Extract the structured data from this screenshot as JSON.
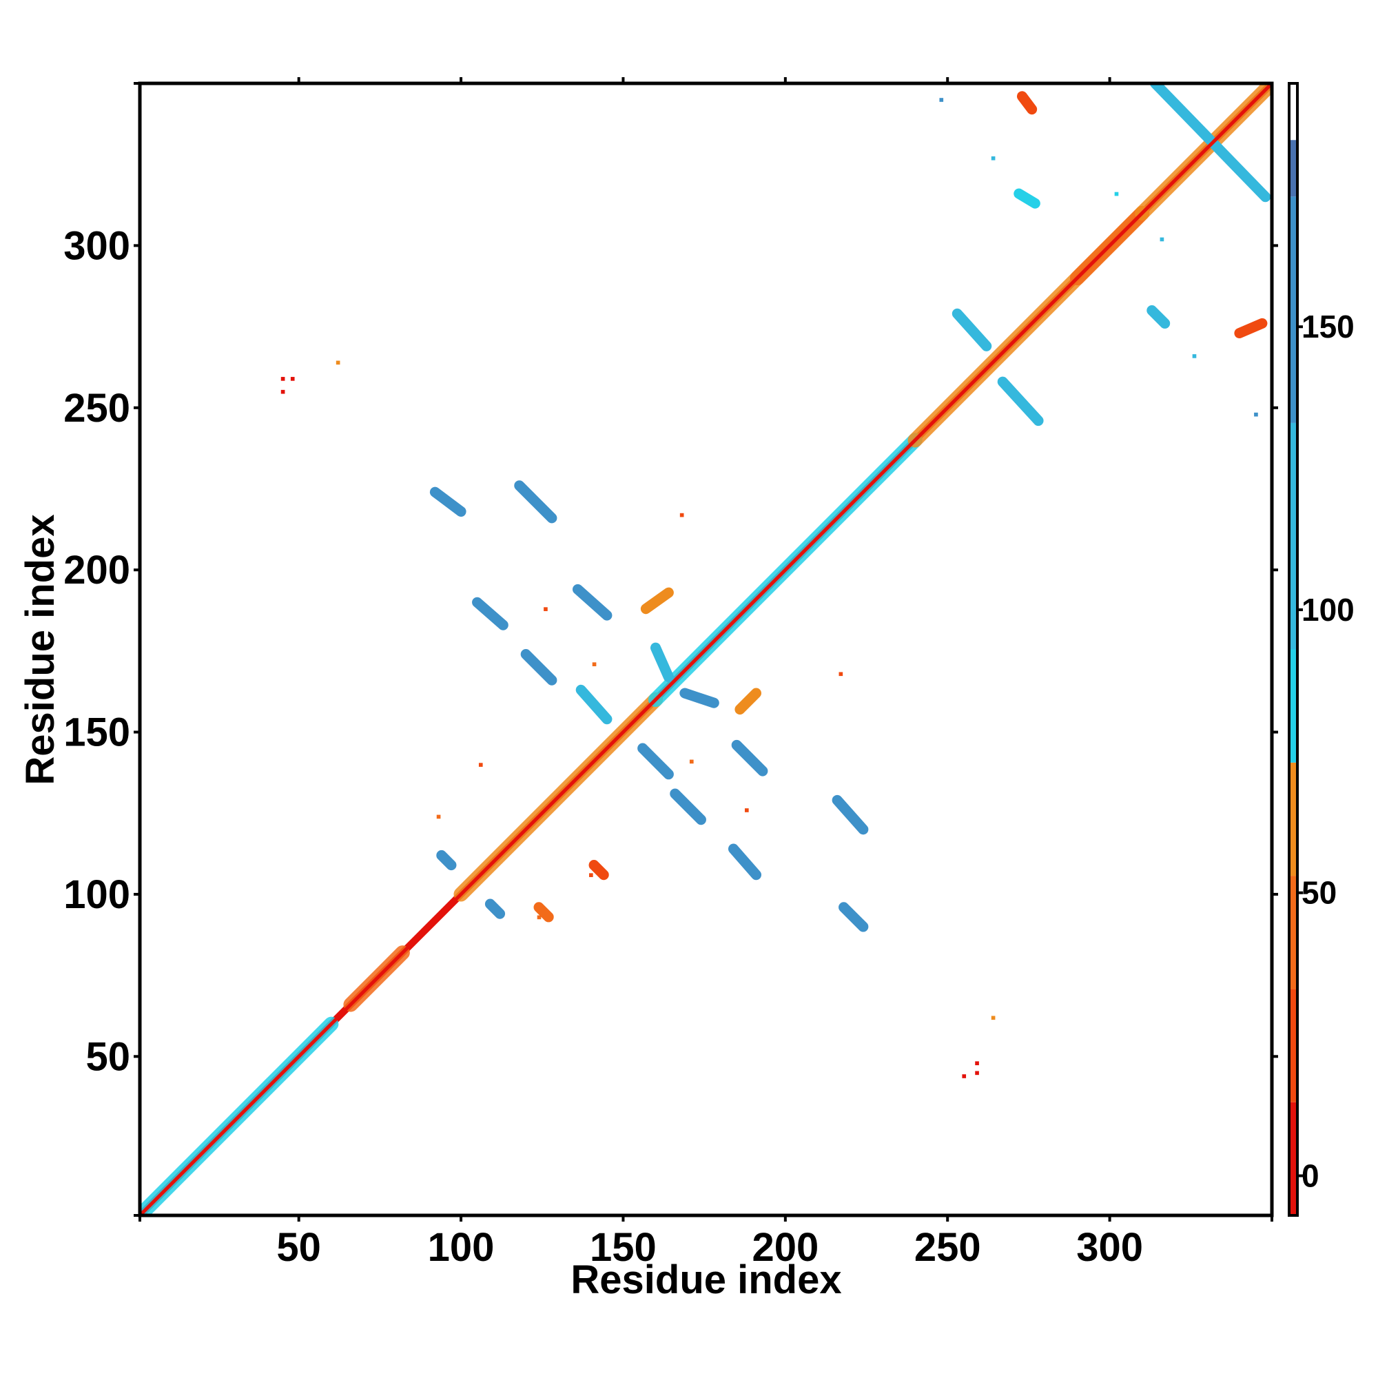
{
  "chart_data": {
    "type": "heatmap",
    "title": "",
    "xlabel": "Residue index",
    "ylabel": "Residue index",
    "xlim": [
      1,
      350
    ],
    "ylim": [
      1,
      350
    ],
    "x_ticks": [
      50,
      100,
      150,
      200,
      250,
      300
    ],
    "y_ticks": [
      50,
      100,
      150,
      200,
      250,
      300
    ],
    "colorbar": {
      "ticks": [
        0,
        50,
        100,
        150
      ],
      "range": [
        -7,
        193
      ],
      "segments": [
        {
          "from": -7,
          "to": 13,
          "color": "#e3120b"
        },
        {
          "from": 13,
          "to": 33,
          "color": "#f04a10"
        },
        {
          "from": 33,
          "to": 53,
          "color": "#f26b1a"
        },
        {
          "from": 53,
          "to": 73,
          "color": "#ee8c1e"
        },
        {
          "from": 73,
          "to": 93,
          "color": "#25d0e8"
        },
        {
          "from": 93,
          "to": 133,
          "color": "#35b8dd"
        },
        {
          "from": 133,
          "to": 173,
          "color": "#3e91c9"
        },
        {
          "from": 173,
          "to": 183,
          "color": "#4a72b0"
        },
        {
          "from": 183,
          "to": 193,
          "color": "#ffffff"
        }
      ]
    },
    "features": [
      {
        "kind": "diagonal",
        "from": 1,
        "to": 350,
        "color": "#e3120b"
      },
      {
        "kind": "band",
        "x1": 3,
        "y1": 3,
        "x2": 60,
        "y2": 60,
        "color": "#25d0e8"
      },
      {
        "kind": "band",
        "x1": 66,
        "y1": 66,
        "x2": 82,
        "y2": 82,
        "color": "#f26b1a"
      },
      {
        "kind": "band",
        "x1": 100,
        "y1": 100,
        "x2": 160,
        "y2": 160,
        "color": "#ee8c1e"
      },
      {
        "kind": "band",
        "x1": 160,
        "y1": 160,
        "x2": 240,
        "y2": 240,
        "color": "#25d0e8"
      },
      {
        "kind": "band",
        "x1": 240,
        "y1": 240,
        "x2": 310,
        "y2": 310,
        "color": "#ee8c1e"
      },
      {
        "kind": "band",
        "x1": 290,
        "y1": 290,
        "x2": 310,
        "y2": 310,
        "color": "#f26b1a"
      },
      {
        "kind": "band",
        "x1": 310,
        "y1": 310,
        "x2": 348,
        "y2": 348,
        "color": "#ee8c1e"
      },
      {
        "kind": "segment",
        "x1": 92,
        "y1": 224,
        "x2": 100,
        "y2": 218,
        "color": "#3e91c9"
      },
      {
        "kind": "segment",
        "x1": 118,
        "y1": 226,
        "x2": 128,
        "y2": 216,
        "color": "#3e91c9"
      },
      {
        "kind": "segment",
        "x1": 105,
        "y1": 190,
        "x2": 113,
        "y2": 183,
        "color": "#3e91c9"
      },
      {
        "kind": "segment",
        "x1": 136,
        "y1": 194,
        "x2": 145,
        "y2": 186,
        "color": "#3e91c9"
      },
      {
        "kind": "segment",
        "x1": 120,
        "y1": 174,
        "x2": 128,
        "y2": 166,
        "color": "#3e91c9"
      },
      {
        "kind": "segment",
        "x1": 137,
        "y1": 163,
        "x2": 145,
        "y2": 154,
        "color": "#35b8dd"
      },
      {
        "kind": "segment",
        "x1": 156,
        "y1": 145,
        "x2": 164,
        "y2": 137,
        "color": "#3e91c9"
      },
      {
        "kind": "segment",
        "x1": 185,
        "y1": 146,
        "x2": 193,
        "y2": 138,
        "color": "#3e91c9"
      },
      {
        "kind": "segment",
        "x1": 166,
        "y1": 131,
        "x2": 174,
        "y2": 123,
        "color": "#3e91c9"
      },
      {
        "kind": "segment",
        "x1": 216,
        "y1": 129,
        "x2": 224,
        "y2": 120,
        "color": "#3e91c9"
      },
      {
        "kind": "segment",
        "x1": 184,
        "y1": 114,
        "x2": 191,
        "y2": 106,
        "color": "#3e91c9"
      },
      {
        "kind": "segment",
        "x1": 218,
        "y1": 96,
        "x2": 224,
        "y2": 90,
        "color": "#3e91c9"
      },
      {
        "kind": "segment",
        "x1": 94,
        "y1": 112,
        "x2": 97,
        "y2": 109,
        "color": "#3e91c9"
      },
      {
        "kind": "segment",
        "x1": 109,
        "y1": 97,
        "x2": 112,
        "y2": 94,
        "color": "#3e91c9"
      },
      {
        "kind": "segment",
        "x1": 160,
        "y1": 176,
        "x2": 164,
        "y2": 167,
        "color": "#35b8dd"
      },
      {
        "kind": "segment",
        "x1": 169,
        "y1": 162,
        "x2": 178,
        "y2": 159,
        "color": "#3e91c9"
      },
      {
        "kind": "segment",
        "x1": 253,
        "y1": 279,
        "x2": 262,
        "y2": 269,
        "color": "#35b8dd"
      },
      {
        "kind": "segment",
        "x1": 267,
        "y1": 258,
        "x2": 278,
        "y2": 246,
        "color": "#35b8dd"
      },
      {
        "kind": "segment",
        "x1": 314,
        "y1": 350,
        "x2": 348,
        "y2": 315,
        "color": "#35b8dd"
      },
      {
        "kind": "segment",
        "x1": 273,
        "y1": 346,
        "x2": 276,
        "y2": 342,
        "color": "#f04a10"
      },
      {
        "kind": "segment",
        "x1": 272,
        "y1": 316,
        "x2": 277,
        "y2": 313,
        "color": "#25d0e8"
      },
      {
        "kind": "segment",
        "x1": 313,
        "y1": 280,
        "x2": 317,
        "y2": 276,
        "color": "#35b8dd"
      },
      {
        "kind": "segment",
        "x1": 340,
        "y1": 273,
        "x2": 347,
        "y2": 276,
        "color": "#f04a10"
      },
      {
        "kind": "segment",
        "x1": 124,
        "y1": 96,
        "x2": 127,
        "y2": 93,
        "color": "#f26b1a"
      },
      {
        "kind": "segment",
        "x1": 141,
        "y1": 109,
        "x2": 144,
        "y2": 106,
        "color": "#f04a10"
      },
      {
        "kind": "segment",
        "x1": 157,
        "y1": 188,
        "x2": 164,
        "y2": 193,
        "color": "#ee8c1e"
      },
      {
        "kind": "segment",
        "x1": 186,
        "y1": 157,
        "x2": 191,
        "y2": 162,
        "color": "#ee8c1e"
      },
      {
        "kind": "point",
        "x": 264,
        "y": 327,
        "color": "#35b8dd"
      },
      {
        "kind": "point",
        "x": 326,
        "y": 266,
        "color": "#35b8dd"
      },
      {
        "kind": "point",
        "x": 248,
        "y": 345,
        "color": "#3e91c9"
      },
      {
        "kind": "point",
        "x": 345,
        "y": 248,
        "color": "#3e91c9"
      },
      {
        "kind": "point",
        "x": 45,
        "y": 259,
        "color": "#e3120b"
      },
      {
        "kind": "point",
        "x": 48,
        "y": 259,
        "color": "#e3120b"
      },
      {
        "kind": "point",
        "x": 45,
        "y": 255,
        "color": "#e3120b"
      },
      {
        "kind": "point",
        "x": 62,
        "y": 264,
        "color": "#ee8c1e"
      },
      {
        "kind": "point",
        "x": 255,
        "y": 44,
        "color": "#e3120b"
      },
      {
        "kind": "point",
        "x": 259,
        "y": 48,
        "color": "#e3120b"
      },
      {
        "kind": "point",
        "x": 259,
        "y": 45,
        "color": "#e3120b"
      },
      {
        "kind": "point",
        "x": 264,
        "y": 62,
        "color": "#ee8c1e"
      },
      {
        "kind": "point",
        "x": 106,
        "y": 140,
        "color": "#f04a10"
      },
      {
        "kind": "point",
        "x": 140,
        "y": 106,
        "color": "#f04a10"
      },
      {
        "kind": "point",
        "x": 93,
        "y": 124,
        "color": "#f26b1a"
      },
      {
        "kind": "point",
        "x": 124,
        "y": 93,
        "color": "#f26b1a"
      },
      {
        "kind": "point",
        "x": 126,
        "y": 188,
        "color": "#f04a10"
      },
      {
        "kind": "point",
        "x": 188,
        "y": 126,
        "color": "#f04a10"
      },
      {
        "kind": "point",
        "x": 141,
        "y": 171,
        "color": "#f26b1a"
      },
      {
        "kind": "point",
        "x": 171,
        "y": 141,
        "color": "#f26b1a"
      },
      {
        "kind": "point",
        "x": 168,
        "y": 217,
        "color": "#f04a10"
      },
      {
        "kind": "point",
        "x": 217,
        "y": 168,
        "color": "#f04a10"
      },
      {
        "kind": "point",
        "x": 302,
        "y": 316,
        "color": "#25d0e8"
      },
      {
        "kind": "point",
        "x": 316,
        "y": 302,
        "color": "#35b8dd"
      }
    ]
  }
}
